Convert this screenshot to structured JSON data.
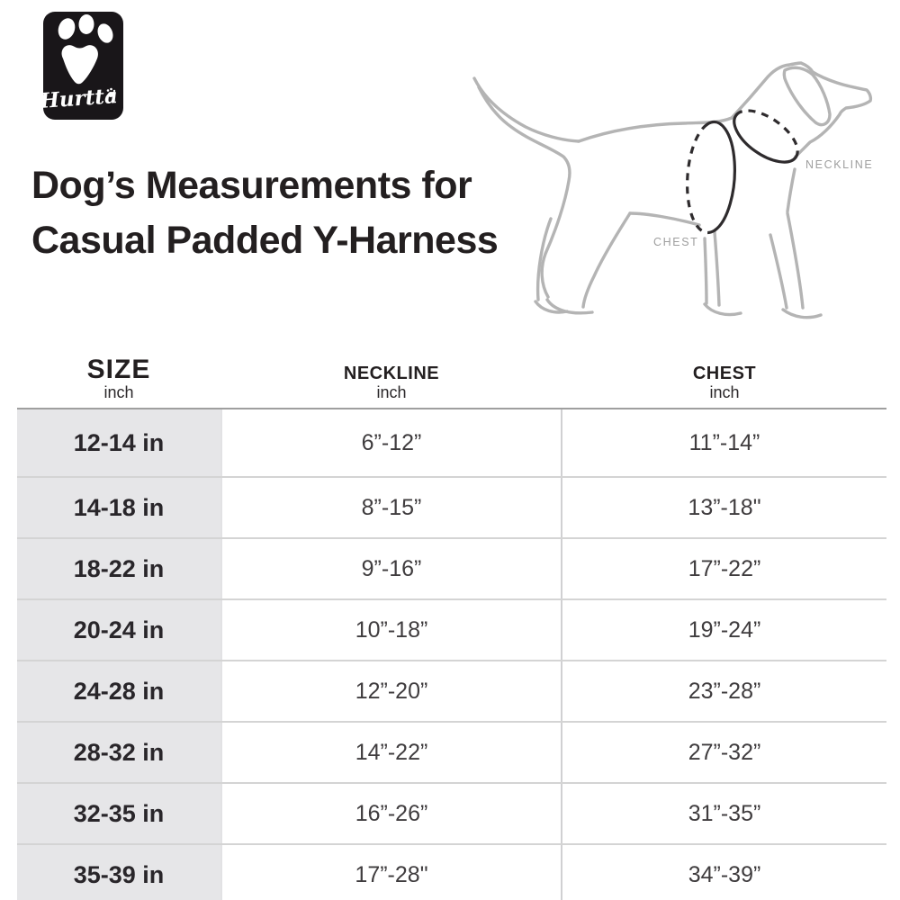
{
  "logo": {
    "brand": "Hurtta"
  },
  "title": {
    "line1": "Dog’s Measurements for",
    "line2": "Casual Padded Y-Harness"
  },
  "diagram": {
    "neckline_label": "NECKLINE",
    "chest_label": "CHEST"
  },
  "table": {
    "columns": [
      {
        "label": "SIZE",
        "unit": "inch"
      },
      {
        "label": "NECKLINE",
        "unit": "inch"
      },
      {
        "label": "CHEST",
        "unit": "inch"
      }
    ],
    "rows": [
      {
        "size": "12-14 in",
        "neckline": "6”-12”",
        "chest": "11”-14”"
      },
      {
        "size": "14-18 in",
        "neckline": "8”-15”",
        "chest": "13”-18\""
      },
      {
        "size": "18-22 in",
        "neckline": "9”-16”",
        "chest": "17”-22”"
      },
      {
        "size": "20-24 in",
        "neckline": "10”-18”",
        "chest": "19”-24”"
      },
      {
        "size": "24-28 in",
        "neckline": "12”-20”",
        "chest": "23”-28”"
      },
      {
        "size": "28-32 in",
        "neckline": "14”-22”",
        "chest": "27”-32”"
      },
      {
        "size": "32-35 in",
        "neckline": "16”-26”",
        "chest": "31”-35”"
      },
      {
        "size": "35-39 in",
        "neckline": "17”-28\"",
        "chest": "34”-39”"
      }
    ]
  },
  "colors": {
    "ink": "#231f20",
    "gray_column": "#e6e6e8",
    "row_line": "#d4d4d4",
    "header_line": "#9f9f9f",
    "sketch_gray": "#b4b4b4",
    "tape_black": "#2e2b2d",
    "label_gray": "#9e9e9e",
    "logo_black": "#191619"
  }
}
